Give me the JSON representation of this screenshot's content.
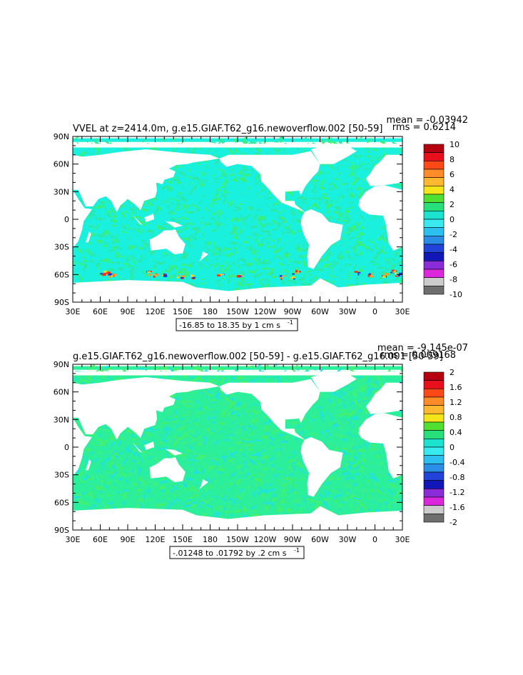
{
  "chart_data": [
    {
      "type": "heatmap",
      "title": "VVEL at z=2414.0m, g.e15.GIAF.T62_g16.newoverflow.002 [50-59]",
      "stats": {
        "mean": "mean = -0.03942",
        "rms": "rms = 0.6214"
      },
      "range_label": "-16.85 to 18.35 by 1 cm s",
      "range_unit_sup": "-1",
      "x_ticks": [
        "30E",
        "60E",
        "90E",
        "120E",
        "150E",
        "180",
        "150W",
        "120W",
        "90W",
        "60W",
        "30W",
        "0",
        "30E"
      ],
      "y_ticks": [
        "90N",
        "60N",
        "30N",
        "0",
        "30S",
        "60S",
        "90S"
      ],
      "colorbar": {
        "labels": [
          "10",
          "8",
          "6",
          "4",
          "2",
          "0",
          "-2",
          "-4",
          "-6",
          "-8",
          "-10"
        ],
        "colors": [
          "#b50010",
          "#e8101a",
          "#ff4a18",
          "#ff8c2a",
          "#ffb830",
          "#f4e41a",
          "#4fe032",
          "#27e07a",
          "#1ce2d0",
          "#38eaf0",
          "#2cc0f0",
          "#2a8ee6",
          "#2044d8",
          "#1218b8",
          "#8a2cd8",
          "#dc28dc",
          "#cccccc",
          "#6e6e6e"
        ]
      },
      "field": {
        "ocean_color": "#19f0de",
        "stroke_colors": [
          "#3cf070",
          "#2ee8a0"
        ],
        "extreme_colors": [
          "#ff2b1a",
          "#1830e0",
          "#ff9a24",
          "#f0e020"
        ]
      }
    },
    {
      "type": "heatmap",
      "title": "g.e15.GIAF.T62_g16.newoverflow.002 [50-59] - g.e15.GIAF.T62_g16.001 [50-59]",
      "stats": {
        "mean": "mean = -9.145e-07",
        "rms": "rms = 0.009168"
      },
      "range_label": "-.01248 to .01792 by .2 cm s",
      "range_unit_sup": "-1",
      "x_ticks": [
        "30E",
        "60E",
        "90E",
        "120E",
        "150E",
        "180",
        "150W",
        "120W",
        "90W",
        "60W",
        "30W",
        "0",
        "30E"
      ],
      "y_ticks": [
        "90N",
        "60N",
        "30N",
        "0",
        "30S",
        "60S",
        "90S"
      ],
      "colorbar": {
        "labels": [
          "2",
          "1.6",
          "1.2",
          "0.8",
          "0.4",
          "0",
          "-0.4",
          "-0.8",
          "-1.2",
          "-1.6",
          "-2"
        ],
        "colors": [
          "#b50010",
          "#e8101a",
          "#ff4a18",
          "#ff8c2a",
          "#ffb830",
          "#f4e41a",
          "#4fe032",
          "#27e07a",
          "#1ce2d0",
          "#38eaf0",
          "#2cc0f0",
          "#2a8ee6",
          "#2044d8",
          "#1218b8",
          "#8a2cd8",
          "#dc28dc",
          "#cccccc",
          "#6e6e6e"
        ]
      },
      "field": {
        "ocean_color": "#2bef9a",
        "stroke_colors": [
          "#20e2e0",
          "#48f068"
        ],
        "extreme_colors": []
      }
    }
  ]
}
